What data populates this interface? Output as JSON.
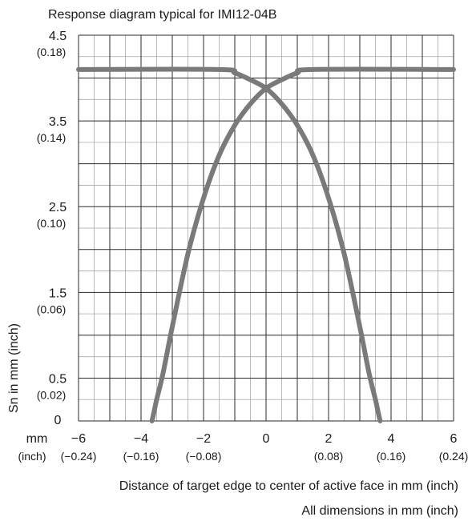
{
  "chart_data": {
    "type": "line",
    "title": "Response diagram typical for IMI12-04B",
    "ylabel": "Sn in mm (inch)",
    "xlabel": "Distance of target edge to center of active face in mm (inch)",
    "footnote": "All dimensions in mm (inch)",
    "x_unit_label": "mm",
    "x_unit_label_inch": "(inch)",
    "xlim": [
      -6,
      6
    ],
    "ylim": [
      0,
      4.5
    ],
    "x_ticks": [
      {
        "value": -6,
        "mm": "−6",
        "inch": "(−0.24)"
      },
      {
        "value": -4,
        "mm": "−4",
        "inch": "(−0.16)"
      },
      {
        "value": -2,
        "mm": "−2",
        "inch": "(−0.08)"
      },
      {
        "value": 0,
        "mm": "0",
        "inch": ""
      },
      {
        "value": 2,
        "mm": "2",
        "inch": "(0.08)"
      },
      {
        "value": 4,
        "mm": "4",
        "inch": "(0.16)"
      },
      {
        "value": 6,
        "mm": "6",
        "inch": "(0.24)"
      }
    ],
    "y_ticks": [
      {
        "value": 4.5,
        "mm": "4.5",
        "inch": "(0.18)"
      },
      {
        "value": 3.5,
        "mm": "3.5",
        "inch": "(0.14)"
      },
      {
        "value": 2.5,
        "mm": "2.5",
        "inch": "(0.10)"
      },
      {
        "value": 1.5,
        "mm": "1.5",
        "inch": "(0.06)"
      },
      {
        "value": 0.5,
        "mm": "0.5",
        "inch": "(0.02)"
      },
      {
        "value": 0,
        "mm": "0",
        "inch": ""
      }
    ],
    "grid": true,
    "grid_minor_step_x": 0.5,
    "grid_major_step_x": 1,
    "grid_major_step_y": 0.5,
    "grid_minor_step_y": 0.25,
    "series": [
      {
        "color": "#7a7a7a",
        "x": [
          -6.0,
          -1.5,
          -1.0,
          -0.5,
          0.0,
          0.5,
          1.0,
          1.5,
          2.0,
          2.5,
          3.0,
          3.3,
          3.5,
          3.6,
          3.65
        ],
        "y": [
          4.1,
          4.1,
          4.06,
          3.98,
          3.88,
          3.7,
          3.45,
          3.1,
          2.6,
          1.95,
          1.1,
          0.55,
          0.25,
          0.08,
          0.0
        ]
      },
      {
        "color": "#7a7a7a",
        "x": [
          6.0,
          1.5,
          1.0,
          0.5,
          0.0,
          -0.5,
          -1.0,
          -1.5,
          -2.0,
          -2.5,
          -3.0,
          -3.3,
          -3.5,
          -3.6,
          -3.65
        ],
        "y": [
          4.1,
          4.1,
          4.06,
          3.98,
          3.88,
          3.7,
          3.45,
          3.1,
          2.6,
          1.95,
          1.1,
          0.55,
          0.25,
          0.08,
          0.0
        ]
      }
    ]
  }
}
